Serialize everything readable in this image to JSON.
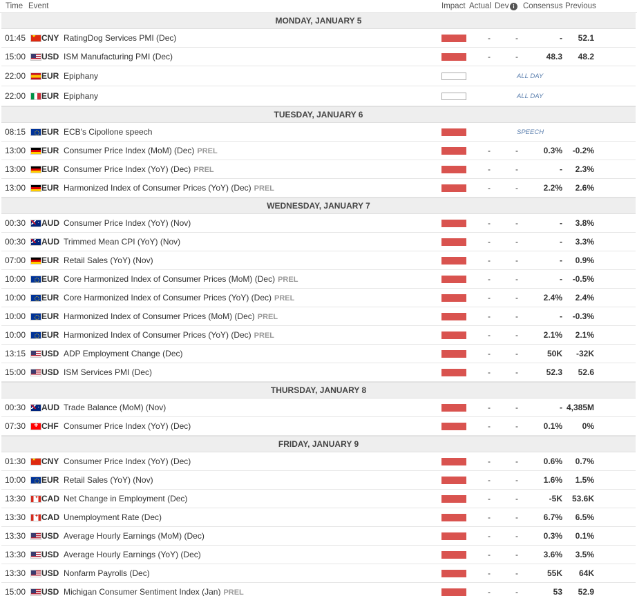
{
  "header": {
    "time": "Time",
    "event": "Event",
    "impact": "Impact",
    "actual": "Actual",
    "dev": "Dev",
    "info_icon": "i",
    "consensus": "Consensus",
    "previous": "Previous"
  },
  "days": [
    {
      "label": "MONDAY, JANUARY 5",
      "events": [
        {
          "time": "01:45",
          "flag": "cn",
          "currency": "CNY",
          "event": "RatingDog Services PMI (Dec)",
          "prel": "",
          "impact": "high",
          "actual": "-",
          "dev": "-",
          "consensus": "-",
          "previous": "52.1",
          "tag": ""
        },
        {
          "time": "15:00",
          "flag": "us",
          "currency": "USD",
          "event": "ISM Manufacturing PMI (Dec)",
          "prel": "",
          "impact": "high",
          "actual": "-",
          "dev": "-",
          "consensus": "48.3",
          "previous": "48.2",
          "tag": ""
        },
        {
          "time": "22:00",
          "flag": "es",
          "currency": "EUR",
          "event": "Epiphany",
          "prel": "",
          "impact": "none",
          "actual": "",
          "dev": "",
          "consensus": "",
          "previous": "",
          "tag": "ALL DAY"
        },
        {
          "time": "22:00",
          "flag": "it",
          "currency": "EUR",
          "event": "Epiphany",
          "prel": "",
          "impact": "none",
          "actual": "",
          "dev": "",
          "consensus": "",
          "previous": "",
          "tag": "ALL DAY"
        }
      ]
    },
    {
      "label": "TUESDAY, JANUARY 6",
      "events": [
        {
          "time": "08:15",
          "flag": "eu",
          "currency": "EUR",
          "event": "ECB's Cipollone speech",
          "prel": "",
          "impact": "high",
          "actual": "",
          "dev": "",
          "consensus": "",
          "previous": "",
          "tag": "SPEECH"
        },
        {
          "time": "13:00",
          "flag": "de",
          "currency": "EUR",
          "event": "Consumer Price Index (MoM) (Dec)",
          "prel": "PREL",
          "impact": "high",
          "actual": "-",
          "dev": "-",
          "consensus": "0.3%",
          "previous": "-0.2%",
          "tag": ""
        },
        {
          "time": "13:00",
          "flag": "de",
          "currency": "EUR",
          "event": "Consumer Price Index (YoY) (Dec)",
          "prel": "PREL",
          "impact": "high",
          "actual": "-",
          "dev": "-",
          "consensus": "-",
          "previous": "2.3%",
          "tag": ""
        },
        {
          "time": "13:00",
          "flag": "de",
          "currency": "EUR",
          "event": "Harmonized Index of Consumer Prices (YoY) (Dec)",
          "prel": "PREL",
          "impact": "high",
          "actual": "-",
          "dev": "-",
          "consensus": "2.2%",
          "previous": "2.6%",
          "tag": ""
        }
      ]
    },
    {
      "label": "WEDNESDAY, JANUARY 7",
      "events": [
        {
          "time": "00:30",
          "flag": "au",
          "currency": "AUD",
          "event": "Consumer Price Index (YoY) (Nov)",
          "prel": "",
          "impact": "high",
          "actual": "-",
          "dev": "-",
          "consensus": "-",
          "previous": "3.8%",
          "tag": ""
        },
        {
          "time": "00:30",
          "flag": "au",
          "currency": "AUD",
          "event": "Trimmed Mean CPI (YoY) (Nov)",
          "prel": "",
          "impact": "high",
          "actual": "-",
          "dev": "-",
          "consensus": "-",
          "previous": "3.3%",
          "tag": ""
        },
        {
          "time": "07:00",
          "flag": "de",
          "currency": "EUR",
          "event": "Retail Sales (YoY) (Nov)",
          "prel": "",
          "impact": "high",
          "actual": "-",
          "dev": "-",
          "consensus": "-",
          "previous": "0.9%",
          "tag": ""
        },
        {
          "time": "10:00",
          "flag": "eu",
          "currency": "EUR",
          "event": "Core Harmonized Index of Consumer Prices (MoM) (Dec)",
          "prel": "PREL",
          "impact": "high",
          "actual": "-",
          "dev": "-",
          "consensus": "-",
          "previous": "-0.5%",
          "tag": ""
        },
        {
          "time": "10:00",
          "flag": "eu",
          "currency": "EUR",
          "event": "Core Harmonized Index of Consumer Prices (YoY) (Dec)",
          "prel": "PREL",
          "impact": "high",
          "actual": "-",
          "dev": "-",
          "consensus": "2.4%",
          "previous": "2.4%",
          "tag": ""
        },
        {
          "time": "10:00",
          "flag": "eu",
          "currency": "EUR",
          "event": "Harmonized Index of Consumer Prices (MoM) (Dec)",
          "prel": "PREL",
          "impact": "high",
          "actual": "-",
          "dev": "-",
          "consensus": "-",
          "previous": "-0.3%",
          "tag": ""
        },
        {
          "time": "10:00",
          "flag": "eu",
          "currency": "EUR",
          "event": "Harmonized Index of Consumer Prices (YoY) (Dec)",
          "prel": "PREL",
          "impact": "high",
          "actual": "-",
          "dev": "-",
          "consensus": "2.1%",
          "previous": "2.1%",
          "tag": ""
        },
        {
          "time": "13:15",
          "flag": "us",
          "currency": "USD",
          "event": "ADP Employment Change (Dec)",
          "prel": "",
          "impact": "high",
          "actual": "-",
          "dev": "-",
          "consensus": "50K",
          "previous": "-32K",
          "tag": ""
        },
        {
          "time": "15:00",
          "flag": "us",
          "currency": "USD",
          "event": "ISM Services PMI (Dec)",
          "prel": "",
          "impact": "high",
          "actual": "-",
          "dev": "-",
          "consensus": "52.3",
          "previous": "52.6",
          "tag": ""
        }
      ]
    },
    {
      "label": "THURSDAY, JANUARY 8",
      "events": [
        {
          "time": "00:30",
          "flag": "au",
          "currency": "AUD",
          "event": "Trade Balance (MoM) (Nov)",
          "prel": "",
          "impact": "high",
          "actual": "-",
          "dev": "-",
          "consensus": "-",
          "previous": "4,385M",
          "tag": ""
        },
        {
          "time": "07:30",
          "flag": "ch",
          "currency": "CHF",
          "event": "Consumer Price Index (YoY) (Dec)",
          "prel": "",
          "impact": "high",
          "actual": "-",
          "dev": "-",
          "consensus": "0.1%",
          "previous": "0%",
          "tag": ""
        }
      ]
    },
    {
      "label": "FRIDAY, JANUARY 9",
      "events": [
        {
          "time": "01:30",
          "flag": "cn",
          "currency": "CNY",
          "event": "Consumer Price Index (YoY) (Dec)",
          "prel": "",
          "impact": "high",
          "actual": "-",
          "dev": "-",
          "consensus": "0.6%",
          "previous": "0.7%",
          "tag": ""
        },
        {
          "time": "10:00",
          "flag": "eu",
          "currency": "EUR",
          "event": "Retail Sales (YoY) (Nov)",
          "prel": "",
          "impact": "high",
          "actual": "-",
          "dev": "-",
          "consensus": "1.6%",
          "previous": "1.5%",
          "tag": ""
        },
        {
          "time": "13:30",
          "flag": "ca",
          "currency": "CAD",
          "event": "Net Change in Employment (Dec)",
          "prel": "",
          "impact": "high",
          "actual": "-",
          "dev": "-",
          "consensus": "-5K",
          "previous": "53.6K",
          "tag": ""
        },
        {
          "time": "13:30",
          "flag": "ca",
          "currency": "CAD",
          "event": "Unemployment Rate (Dec)",
          "prel": "",
          "impact": "high",
          "actual": "-",
          "dev": "-",
          "consensus": "6.7%",
          "previous": "6.5%",
          "tag": ""
        },
        {
          "time": "13:30",
          "flag": "us",
          "currency": "USD",
          "event": "Average Hourly Earnings (MoM) (Dec)",
          "prel": "",
          "impact": "high",
          "actual": "-",
          "dev": "-",
          "consensus": "0.3%",
          "previous": "0.1%",
          "tag": ""
        },
        {
          "time": "13:30",
          "flag": "us",
          "currency": "USD",
          "event": "Average Hourly Earnings (YoY) (Dec)",
          "prel": "",
          "impact": "high",
          "actual": "-",
          "dev": "-",
          "consensus": "3.6%",
          "previous": "3.5%",
          "tag": ""
        },
        {
          "time": "13:30",
          "flag": "us",
          "currency": "USD",
          "event": "Nonfarm Payrolls (Dec)",
          "prel": "",
          "impact": "high",
          "actual": "-",
          "dev": "-",
          "consensus": "55K",
          "previous": "64K",
          "tag": ""
        },
        {
          "time": "15:00",
          "flag": "us",
          "currency": "USD",
          "event": "Michigan Consumer Sentiment Index (Jan)",
          "prel": "PREL",
          "impact": "high",
          "actual": "-",
          "dev": "-",
          "consensus": "53",
          "previous": "52.9",
          "tag": ""
        }
      ]
    }
  ]
}
